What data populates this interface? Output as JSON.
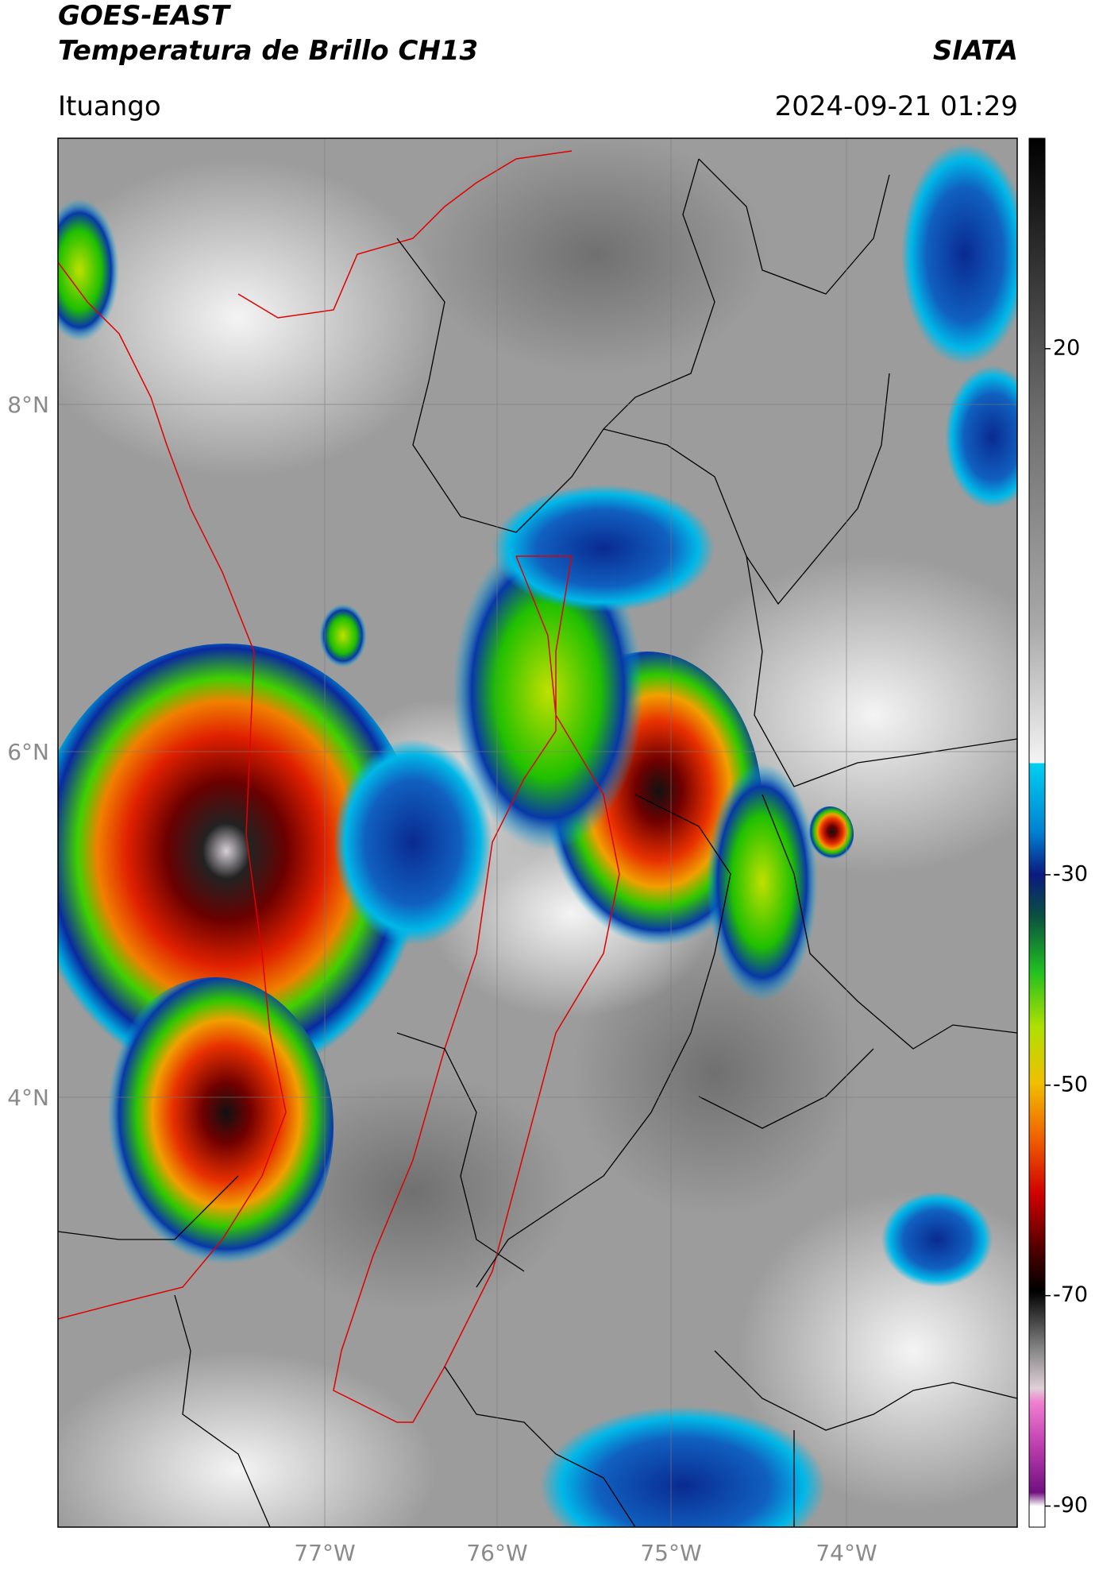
{
  "header": {
    "title": "GOES-EAST",
    "subtitle": "Temperatura de Brillo CH13",
    "brand": "SIATA",
    "location": "Ituango",
    "datetime": "2024-09-21 01:29"
  },
  "map": {
    "lat_labels": [
      "8°N",
      "6°N",
      "4°N"
    ],
    "lon_labels": [
      "77°W",
      "76°W",
      "75°W",
      "74°W"
    ]
  },
  "colorbar": {
    "range": [
      -92,
      40
    ],
    "ticks": [
      20,
      -30,
      -50,
      -70,
      -90
    ]
  }
}
